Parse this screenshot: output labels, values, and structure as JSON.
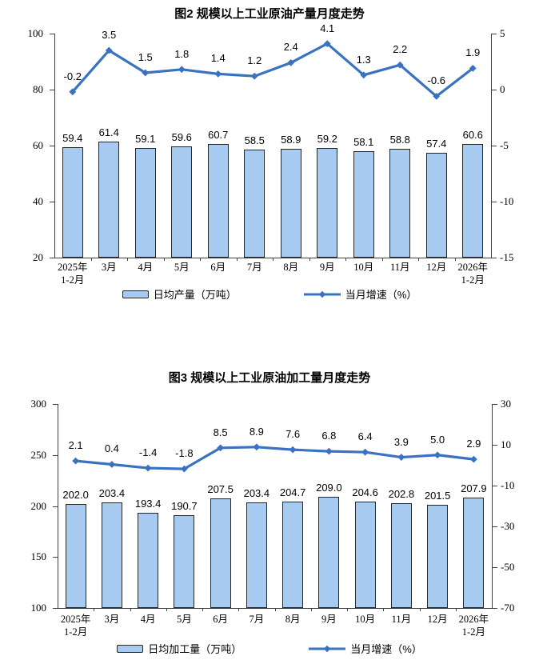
{
  "colors": {
    "bar_fill": "#A6CAF0",
    "bar_border": "#262626",
    "line": "#3A72C2",
    "axis": "#404040",
    "text": "#000000",
    "background": "#FFFFFF"
  },
  "chart_data": [
    {
      "type": "bar",
      "combo": "bar+line",
      "title": "图2 规模以上工业原油产量月度走势",
      "xlabel": "",
      "ylabel_left": "日均产量（万吨）",
      "ylabel_right": "当月增速（%）",
      "categories": [
        "2025年1-2月",
        "3月",
        "4月",
        "5月",
        "6月",
        "7月",
        "8月",
        "9月",
        "10月",
        "11月",
        "12月",
        "2026年1-2月"
      ],
      "series": [
        {
          "name": "日均产量（万吨）",
          "type": "bar",
          "axis": "left",
          "values": [
            59.4,
            61.4,
            59.1,
            59.6,
            60.7,
            58.5,
            58.9,
            59.2,
            58.1,
            58.8,
            57.4,
            60.6
          ],
          "labels": [
            "59.4",
            "61.4",
            "59.1",
            "59.6",
            "60.7",
            "58.5",
            "58.9",
            "59.2",
            "58.1",
            "58.8",
            "57.4",
            "60.6"
          ]
        },
        {
          "name": "当月增速（%）",
          "type": "line",
          "axis": "right",
          "values": [
            -0.2,
            3.5,
            1.5,
            1.8,
            1.4,
            1.2,
            2.4,
            4.1,
            1.3,
            2.2,
            -0.6,
            1.9
          ],
          "labels": [
            "-0.2",
            "3.5",
            "1.5",
            "1.8",
            "1.4",
            "1.2",
            "2.4",
            "4.1",
            "1.3",
            "2.2",
            "-0.6",
            "1.9"
          ]
        }
      ],
      "left_axis": {
        "lim": [
          20,
          100
        ],
        "ticks": [
          100,
          80,
          60,
          40,
          20
        ]
      },
      "right_axis": {
        "lim": [
          -15,
          5
        ],
        "ticks": [
          5,
          0,
          -5,
          -10,
          -15
        ]
      },
      "grid": false,
      "legend_position": "bottom"
    },
    {
      "type": "bar",
      "combo": "bar+line",
      "title": "图3 规模以上工业原油加工量月度走势",
      "xlabel": "",
      "ylabel_left": "日均加工量（万吨）",
      "ylabel_right": "当月增速（%）",
      "categories": [
        "2025年1-2月",
        "3月",
        "4月",
        "5月",
        "6月",
        "7月",
        "8月",
        "9月",
        "10月",
        "11月",
        "12月",
        "2026年1-2月"
      ],
      "series": [
        {
          "name": "日均加工量（万吨）",
          "type": "bar",
          "axis": "left",
          "values": [
            202.0,
            203.4,
            193.4,
            190.7,
            207.5,
            203.4,
            204.7,
            209.0,
            204.6,
            202.8,
            201.5,
            207.9
          ],
          "labels": [
            "202.0",
            "203.4",
            "193.4",
            "190.7",
            "207.5",
            "203.4",
            "204.7",
            "209.0",
            "204.6",
            "202.8",
            "201.5",
            "207.9"
          ]
        },
        {
          "name": "当月增速（%）",
          "type": "line",
          "axis": "right",
          "values": [
            2.1,
            0.4,
            -1.4,
            -1.8,
            8.5,
            8.9,
            7.6,
            6.8,
            6.4,
            3.9,
            5.0,
            2.9
          ],
          "labels": [
            "2.1",
            "0.4",
            "-1.4",
            "-1.8",
            "8.5",
            "8.9",
            "7.6",
            "6.8",
            "6.4",
            "3.9",
            "5.0",
            "2.9"
          ]
        }
      ],
      "left_axis": {
        "lim": [
          100,
          300
        ],
        "ticks": [
          300,
          250,
          200,
          150,
          100
        ]
      },
      "right_axis": {
        "lim": [
          -70,
          30
        ],
        "ticks": [
          30,
          10,
          -10,
          -30,
          -50,
          -70
        ]
      },
      "grid": false,
      "legend_position": "bottom"
    }
  ]
}
